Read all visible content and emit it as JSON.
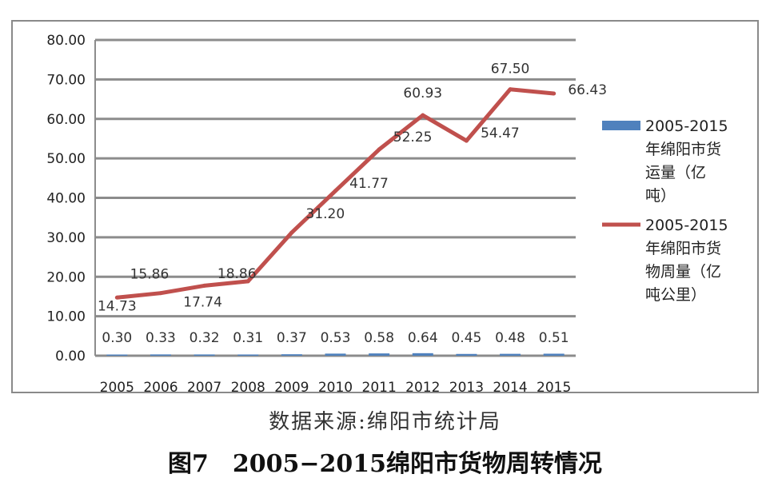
{
  "source_text": "数据来源:绵阳市统计局",
  "caption": "图7　2005−2015绵阳市货物周转情况",
  "chart_data": {
    "type": "bar+line",
    "x": [
      "2005",
      "2006",
      "2007",
      "2008",
      "2009",
      "2010",
      "2011",
      "2012",
      "2013",
      "2014",
      "2015"
    ],
    "ylim": [
      0,
      80
    ],
    "y_ticks": [
      "0.00",
      "10.00",
      "20.00",
      "30.00",
      "40.00",
      "50.00",
      "60.00",
      "70.00",
      "80.00"
    ],
    "grid": true,
    "legend_position": "right",
    "series": [
      {
        "name": "2005-2015年绵阳市货运量（亿吨）",
        "name_lines": [
          "2005-2015",
          "年绵阳市货",
          "运量（亿",
          "吨）"
        ],
        "type": "bar",
        "color": "#4f81bd",
        "values": [
          0.3,
          0.33,
          0.32,
          0.31,
          0.37,
          0.53,
          0.58,
          0.64,
          0.45,
          0.48,
          0.51
        ],
        "labels": [
          "0.30",
          "0.33",
          "0.32",
          "0.31",
          "0.37",
          "0.53",
          "0.58",
          "0.64",
          "0.45",
          "0.48",
          "0.51"
        ]
      },
      {
        "name": "2005-2015年绵阳市货物周量（亿吨公里）",
        "name_lines": [
          "2005-2015",
          "年绵阳市货",
          "物周量（亿",
          "吨公里）"
        ],
        "type": "line",
        "color": "#c0504d",
        "values": [
          14.73,
          15.86,
          17.74,
          18.86,
          31.2,
          41.77,
          52.25,
          60.93,
          54.47,
          67.5,
          66.43
        ],
        "labels": [
          "14.73",
          "15.86",
          "17.74",
          "18.86",
          "31.20",
          "41.77",
          "52.25",
          "60.93",
          "54.47",
          "67.50",
          "66.43"
        ]
      }
    ]
  }
}
